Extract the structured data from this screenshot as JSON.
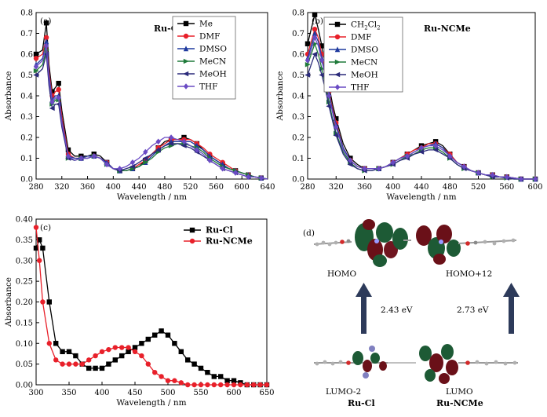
{
  "panels": [
    {
      "id": "a",
      "label": "(a)",
      "title": "Ru-Cl",
      "xlabel": "Wavelength / nm",
      "ylabel": "Absorbance",
      "xlim": [
        280,
        640
      ],
      "ylim": [
        0,
        0.8
      ],
      "xticks": [
        "280",
        "320",
        "360",
        "400",
        "440",
        "480",
        "520",
        "560",
        "600",
        "640"
      ],
      "yticks": [
        "0.0",
        "0.1",
        "0.2",
        "0.3",
        "0.4",
        "0.5",
        "0.6",
        "0.7",
        "0.8"
      ],
      "legend": [
        "Me",
        "DMF",
        "DMSO",
        "MeCN",
        "MeOH",
        "THF"
      ]
    },
    {
      "id": "b",
      "label": "(b)",
      "title": "Ru-NCMe",
      "xlabel": "Wavelength / nm",
      "ylabel": "Absorbance",
      "xlim": [
        280,
        600
      ],
      "ylim": [
        0,
        0.8
      ],
      "xticks": [
        "280",
        "320",
        "360",
        "400",
        "440",
        "480",
        "520",
        "560",
        "600"
      ],
      "yticks": [
        "0.0",
        "0.1",
        "0.2",
        "0.3",
        "0.4",
        "0.5",
        "0.6",
        "0.7",
        "0.8"
      ],
      "legend": [
        "CH2Cl2",
        "DMF",
        "DMSO",
        "MeCN",
        "MeOH",
        "THF"
      ]
    },
    {
      "id": "c",
      "label": "(c)",
      "xlabel": "Wavelength / nm",
      "ylabel": "Absorbance",
      "xlim": [
        300,
        650
      ],
      "ylim": [
        0,
        0.4
      ],
      "xticks": [
        "300",
        "350",
        "400",
        "450",
        "500",
        "550",
        "600",
        "650"
      ],
      "yticks": [
        "0.00",
        "0.05",
        "0.10",
        "0.15",
        "0.20",
        "0.25",
        "0.30",
        "0.35",
        "0.40"
      ],
      "legend": [
        "Ru-Cl",
        "Ru-NCMe"
      ]
    }
  ],
  "colors": {
    "black": "#000000",
    "red": "#e8202a",
    "blue": "#1f3a9e",
    "green": "#1f7a3a",
    "darkblue": "#2b2a7a",
    "purple": "#6a4bc4",
    "arrow": "#2d3a5a"
  },
  "chart_data": [
    {
      "type": "line",
      "panel": "a",
      "title": "Ru-Cl",
      "xlabel": "Wavelength / nm",
      "ylabel": "Absorbance",
      "xlim": [
        280,
        640
      ],
      "ylim": [
        0,
        0.8
      ],
      "x": [
        280,
        290,
        296,
        300,
        305,
        310,
        315,
        320,
        330,
        340,
        350,
        360,
        370,
        380,
        390,
        400,
        410,
        420,
        430,
        440,
        450,
        460,
        470,
        480,
        490,
        500,
        510,
        520,
        530,
        540,
        550,
        560,
        570,
        580,
        590,
        600,
        610,
        620,
        630,
        640
      ],
      "series": [
        {
          "name": "Me",
          "color": "#000000",
          "marker": "square",
          "values": [
            0.6,
            0.62,
            0.75,
            0.55,
            0.42,
            0.44,
            0.46,
            0.33,
            0.14,
            0.11,
            0.11,
            0.11,
            0.12,
            0.11,
            0.08,
            0.05,
            0.04,
            0.04,
            0.05,
            0.06,
            0.09,
            0.12,
            0.15,
            0.18,
            0.19,
            0.19,
            0.2,
            0.19,
            0.17,
            0.14,
            0.11,
            0.09,
            0.07,
            0.05,
            0.04,
            0.03,
            0.02,
            0.01,
            0.005,
            0.0
          ]
        },
        {
          "name": "DMF",
          "color": "#e8202a",
          "marker": "circle",
          "values": [
            0.58,
            0.6,
            0.68,
            0.52,
            0.4,
            0.42,
            0.43,
            0.3,
            0.12,
            0.1,
            0.1,
            0.11,
            0.11,
            0.1,
            0.08,
            0.05,
            0.04,
            0.04,
            0.05,
            0.07,
            0.09,
            0.12,
            0.15,
            0.17,
            0.19,
            0.19,
            0.19,
            0.19,
            0.17,
            0.15,
            0.12,
            0.1,
            0.08,
            0.06,
            0.04,
            0.03,
            0.02,
            0.01,
            0.005,
            0.0
          ]
        },
        {
          "name": "DMSO",
          "color": "#1f3a9e",
          "marker": "triangle",
          "values": [
            0.55,
            0.58,
            0.66,
            0.5,
            0.38,
            0.4,
            0.4,
            0.28,
            0.11,
            0.1,
            0.1,
            0.11,
            0.11,
            0.1,
            0.08,
            0.05,
            0.04,
            0.04,
            0.05,
            0.06,
            0.08,
            0.11,
            0.14,
            0.16,
            0.18,
            0.18,
            0.18,
            0.18,
            0.16,
            0.14,
            0.11,
            0.09,
            0.07,
            0.05,
            0.04,
            0.03,
            0.02,
            0.01,
            0.005,
            0.0
          ]
        },
        {
          "name": "MeCN",
          "color": "#1f7a3a",
          "marker": "tri-right",
          "values": [
            0.52,
            0.55,
            0.62,
            0.46,
            0.36,
            0.38,
            0.38,
            0.26,
            0.1,
            0.09,
            0.1,
            0.1,
            0.11,
            0.1,
            0.07,
            0.05,
            0.04,
            0.04,
            0.05,
            0.06,
            0.08,
            0.1,
            0.13,
            0.15,
            0.16,
            0.17,
            0.17,
            0.16,
            0.15,
            0.13,
            0.1,
            0.08,
            0.06,
            0.05,
            0.04,
            0.03,
            0.02,
            0.01,
            0.005,
            0.0
          ]
        },
        {
          "name": "MeOH",
          "color": "#2b2a7a",
          "marker": "tri-left",
          "values": [
            0.5,
            0.53,
            0.6,
            0.45,
            0.34,
            0.36,
            0.36,
            0.25,
            0.1,
            0.09,
            0.1,
            0.1,
            0.11,
            0.1,
            0.07,
            0.05,
            0.04,
            0.05,
            0.06,
            0.08,
            0.1,
            0.12,
            0.14,
            0.16,
            0.17,
            0.17,
            0.16,
            0.15,
            0.13,
            0.11,
            0.09,
            0.07,
            0.05,
            0.04,
            0.03,
            0.02,
            0.01,
            0.01,
            0.005,
            0.0
          ]
        },
        {
          "name": "THF",
          "color": "#6a4bc4",
          "marker": "diamond",
          "values": [
            0.54,
            0.57,
            0.64,
            0.48,
            0.37,
            0.39,
            0.39,
            0.27,
            0.11,
            0.09,
            0.1,
            0.1,
            0.11,
            0.1,
            0.07,
            0.05,
            0.05,
            0.06,
            0.08,
            0.1,
            0.13,
            0.16,
            0.18,
            0.2,
            0.2,
            0.19,
            0.18,
            0.16,
            0.14,
            0.12,
            0.09,
            0.07,
            0.05,
            0.04,
            0.03,
            0.02,
            0.01,
            0.01,
            0.005,
            0.0
          ]
        }
      ]
    },
    {
      "type": "line",
      "panel": "b",
      "title": "Ru-NCMe",
      "xlabel": "Wavelength / nm",
      "ylabel": "Absorbance",
      "xlim": [
        280,
        600
      ],
      "ylim": [
        0,
        0.8
      ],
      "x": [
        280,
        285,
        290,
        295,
        300,
        305,
        310,
        315,
        320,
        330,
        340,
        350,
        360,
        370,
        380,
        390,
        400,
        410,
        420,
        430,
        440,
        450,
        460,
        470,
        480,
        490,
        500,
        510,
        520,
        530,
        540,
        550,
        560,
        570,
        580,
        590,
        600
      ],
      "series": [
        {
          "name": "CH2Cl2",
          "color": "#000000",
          "marker": "square",
          "values": [
            0.65,
            0.72,
            0.79,
            0.72,
            0.64,
            0.55,
            0.45,
            0.36,
            0.29,
            0.17,
            0.1,
            0.07,
            0.05,
            0.05,
            0.05,
            0.06,
            0.08,
            0.1,
            0.12,
            0.14,
            0.16,
            0.17,
            0.18,
            0.16,
            0.12,
            0.08,
            0.06,
            0.04,
            0.03,
            0.02,
            0.02,
            0.01,
            0.01,
            0.005,
            0.0,
            0.0,
            0.0
          ]
        },
        {
          "name": "DMF",
          "color": "#e8202a",
          "marker": "circle",
          "values": [
            0.6,
            0.66,
            0.72,
            0.68,
            0.6,
            0.52,
            0.42,
            0.34,
            0.27,
            0.15,
            0.09,
            0.06,
            0.05,
            0.05,
            0.05,
            0.06,
            0.08,
            0.1,
            0.12,
            0.14,
            0.15,
            0.17,
            0.17,
            0.15,
            0.12,
            0.08,
            0.06,
            0.04,
            0.03,
            0.02,
            0.02,
            0.01,
            0.01,
            0.005,
            0.0,
            0.0,
            0.0
          ]
        },
        {
          "name": "DMSO",
          "color": "#1f3a9e",
          "marker": "triangle",
          "values": [
            0.58,
            0.64,
            0.7,
            0.66,
            0.58,
            0.5,
            0.41,
            0.33,
            0.26,
            0.15,
            0.09,
            0.06,
            0.05,
            0.05,
            0.05,
            0.06,
            0.08,
            0.1,
            0.11,
            0.13,
            0.15,
            0.16,
            0.17,
            0.15,
            0.11,
            0.08,
            0.06,
            0.04,
            0.03,
            0.02,
            0.02,
            0.01,
            0.01,
            0.005,
            0.0,
            0.0,
            0.0
          ]
        },
        {
          "name": "MeCN",
          "color": "#1f7a3a",
          "marker": "tri-right",
          "values": [
            0.55,
            0.6,
            0.65,
            0.6,
            0.53,
            0.45,
            0.37,
            0.29,
            0.22,
            0.13,
            0.08,
            0.05,
            0.04,
            0.04,
            0.05,
            0.06,
            0.07,
            0.09,
            0.11,
            0.12,
            0.14,
            0.15,
            0.15,
            0.13,
            0.1,
            0.07,
            0.05,
            0.04,
            0.03,
            0.02,
            0.01,
            0.01,
            0.005,
            0.0,
            0.0,
            0.0,
            0.0
          ]
        },
        {
          "name": "MeOH",
          "color": "#2b2a7a",
          "marker": "tri-left",
          "values": [
            0.5,
            0.55,
            0.6,
            0.56,
            0.5,
            0.43,
            0.35,
            0.28,
            0.21,
            0.12,
            0.07,
            0.05,
            0.04,
            0.04,
            0.05,
            0.06,
            0.07,
            0.09,
            0.1,
            0.12,
            0.13,
            0.14,
            0.14,
            0.12,
            0.1,
            0.07,
            0.05,
            0.04,
            0.03,
            0.02,
            0.01,
            0.01,
            0.005,
            0.0,
            0.0,
            0.0,
            0.0
          ]
        },
        {
          "name": "THF",
          "color": "#6a4bc4",
          "marker": "diamond",
          "values": [
            0.57,
            0.62,
            0.68,
            0.64,
            0.57,
            0.49,
            0.4,
            0.32,
            0.25,
            0.14,
            0.09,
            0.06,
            0.05,
            0.05,
            0.05,
            0.06,
            0.08,
            0.1,
            0.11,
            0.13,
            0.15,
            0.16,
            0.16,
            0.14,
            0.11,
            0.08,
            0.06,
            0.04,
            0.03,
            0.02,
            0.02,
            0.01,
            0.01,
            0.005,
            0.0,
            0.0,
            0.0
          ]
        }
      ]
    },
    {
      "type": "line",
      "panel": "c",
      "xlabel": "Wavelength / nm",
      "ylabel": "Absorbance",
      "xlim": [
        300,
        650
      ],
      "ylim": [
        0,
        0.4
      ],
      "legend_position": "top-right",
      "x": [
        300,
        305,
        310,
        320,
        330,
        340,
        350,
        360,
        370,
        380,
        390,
        400,
        410,
        420,
        430,
        440,
        450,
        460,
        470,
        480,
        490,
        500,
        510,
        520,
        530,
        540,
        550,
        560,
        570,
        580,
        590,
        600,
        610,
        620,
        630,
        640,
        650
      ],
      "series": [
        {
          "name": "Ru-Cl",
          "color": "#000000",
          "marker": "square",
          "values": [
            0.33,
            0.35,
            0.33,
            0.2,
            0.1,
            0.08,
            0.08,
            0.07,
            0.05,
            0.04,
            0.04,
            0.04,
            0.05,
            0.06,
            0.07,
            0.08,
            0.09,
            0.1,
            0.11,
            0.12,
            0.13,
            0.12,
            0.1,
            0.08,
            0.06,
            0.05,
            0.04,
            0.03,
            0.02,
            0.02,
            0.01,
            0.01,
            0.005,
            0.0,
            0.0,
            0.0,
            0.0
          ]
        },
        {
          "name": "Ru-NCMe",
          "color": "#e8202a",
          "marker": "circle",
          "values": [
            0.38,
            0.3,
            0.2,
            0.1,
            0.06,
            0.05,
            0.05,
            0.05,
            0.05,
            0.06,
            0.07,
            0.08,
            0.085,
            0.09,
            0.09,
            0.09,
            0.08,
            0.07,
            0.05,
            0.03,
            0.02,
            0.01,
            0.01,
            0.005,
            0.0,
            0.0,
            0.0,
            0.0,
            0.0,
            0.0,
            0.0,
            0.0,
            0.0,
            0.0,
            0.0,
            0.0,
            0.0
          ]
        }
      ]
    }
  ],
  "orbitals": {
    "label": "(d)",
    "homo_left": "HOMO",
    "homo_right": "HOMO+12",
    "lumo_left": "LUMO-2",
    "lumo_right": "LUMO",
    "gap_left": "2.43 eV",
    "gap_right": "2.73 eV",
    "name_left": "Ru-Cl",
    "name_right": "Ru-NCMe"
  }
}
